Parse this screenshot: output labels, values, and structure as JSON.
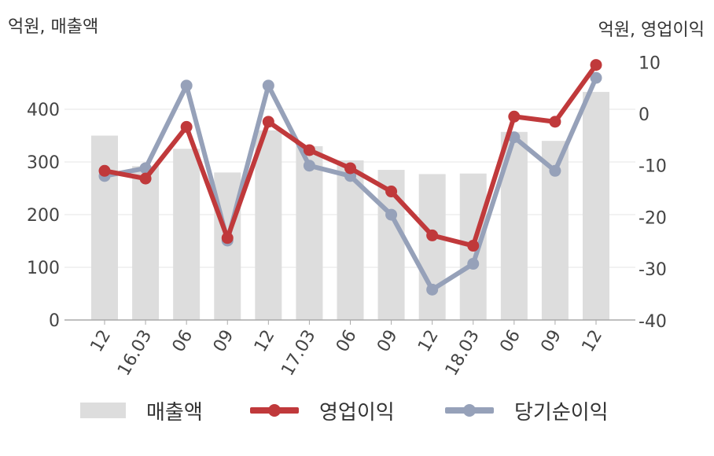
{
  "y_left_unit": "억원, 매출액",
  "y_right_unit": "억원, 영업이익",
  "colors": {
    "revenue": "#dddddd",
    "operating_profit": "#c0393b",
    "net_income": "#96a1b9",
    "axis": "#aaaaaa",
    "grid": "#e6e6e6",
    "text": "#444444"
  },
  "legend": {
    "revenue": "매출액",
    "operating_profit": "영업이익",
    "net_income": "당기순이익"
  },
  "chart_data": {
    "type": "bar",
    "categories": [
      "12",
      "16.03",
      "06",
      "09",
      "12",
      "17.03",
      "06",
      "09",
      "12",
      "18.03",
      "06",
      "09",
      "12"
    ],
    "series": [
      {
        "name": "매출액",
        "type": "bar",
        "axis": "left",
        "values": [
          350,
          292,
          325,
          280,
          360,
          330,
          303,
          285,
          277,
          278,
          357,
          340,
          433
        ]
      },
      {
        "name": "영업이익",
        "type": "line",
        "axis": "right",
        "values": [
          -11,
          -12.5,
          -2.5,
          -24,
          -1.5,
          -7,
          -10.5,
          -15,
          -23.5,
          -25.5,
          -0.5,
          -1.5,
          9.5
        ]
      },
      {
        "name": "당기순이익",
        "type": "line",
        "axis": "right",
        "values": [
          -12,
          -10.5,
          5.5,
          -24.5,
          5.5,
          -10,
          -12,
          -19.5,
          -34,
          -29,
          -4.5,
          -11,
          7
        ]
      }
    ],
    "y_left": {
      "min": 0,
      "max": 500,
      "ticks": [
        0,
        100,
        200,
        300,
        400
      ]
    },
    "y_right": {
      "min": -40,
      "max": 15,
      "ticks": [
        -40,
        -30,
        -20,
        -10,
        0,
        10
      ]
    },
    "grid": true,
    "legend_position": "bottom"
  }
}
